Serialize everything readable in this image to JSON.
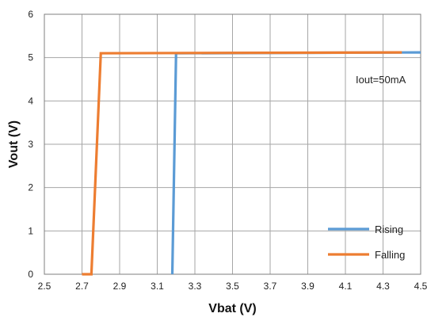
{
  "chart_data": {
    "type": "line",
    "title": "",
    "xlabel": "Vbat (V)",
    "ylabel": "Vout (V)",
    "xlim": [
      2.5,
      4.5
    ],
    "ylim": [
      0,
      6
    ],
    "xticks": [
      "2.5",
      "2.7",
      "2.9",
      "3.1",
      "3.3",
      "3.5",
      "3.7",
      "3.9",
      "4.1",
      "4.3",
      "4.5"
    ],
    "yticks": [
      "0",
      "1",
      "2",
      "3",
      "4",
      "5",
      "6"
    ],
    "grid": true,
    "legend_position": "bottom-right",
    "annotation": "Iout=50mA",
    "series": [
      {
        "name": "Rising",
        "color": "#5B9BD5",
        "x": [
          3.18,
          3.2,
          4.5
        ],
        "y": [
          0,
          5.1,
          5.12
        ]
      },
      {
        "name": "Falling",
        "color": "#ED7D31",
        "x": [
          2.7,
          2.75,
          2.8,
          4.4
        ],
        "y": [
          0,
          0,
          5.1,
          5.12
        ]
      }
    ]
  }
}
